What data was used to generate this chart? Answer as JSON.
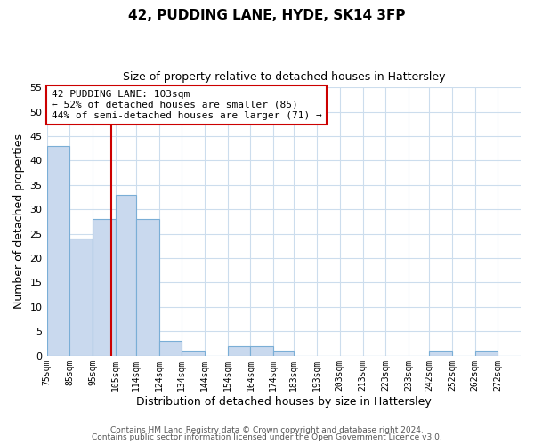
{
  "title": "42, PUDDING LANE, HYDE, SK14 3FP",
  "subtitle": "Size of property relative to detached houses in Hattersley",
  "xlabel": "Distribution of detached houses by size in Hattersley",
  "ylabel": "Number of detached properties",
  "bin_labels": [
    "75sqm",
    "85sqm",
    "95sqm",
    "105sqm",
    "114sqm",
    "124sqm",
    "134sqm",
    "144sqm",
    "154sqm",
    "164sqm",
    "174sqm",
    "183sqm",
    "193sqm",
    "203sqm",
    "213sqm",
    "223sqm",
    "233sqm",
    "242sqm",
    "252sqm",
    "262sqm",
    "272sqm"
  ],
  "bin_edges": [
    75,
    85,
    95,
    105,
    114,
    124,
    134,
    144,
    154,
    164,
    174,
    183,
    193,
    203,
    213,
    223,
    233,
    242,
    252,
    262,
    272
  ],
  "counts": [
    43,
    24,
    28,
    33,
    28,
    3,
    1,
    0,
    2,
    2,
    1,
    0,
    0,
    0,
    0,
    0,
    0,
    1,
    0,
    1,
    0
  ],
  "bar_color": "#c9d9ee",
  "bar_edge_color": "#7aaed6",
  "property_line_x": 103,
  "property_line_color": "#cc0000",
  "annotation_line1": "42 PUDDING LANE: 103sqm",
  "annotation_line2": "← 52% of detached houses are smaller (85)",
  "annotation_line3": "44% of semi-detached houses are larger (71) →",
  "annotation_box_color": "#ffffff",
  "annotation_box_edge": "#cc0000",
  "ylim": [
    0,
    55
  ],
  "yticks": [
    0,
    5,
    10,
    15,
    20,
    25,
    30,
    35,
    40,
    45,
    50,
    55
  ],
  "footer1": "Contains HM Land Registry data © Crown copyright and database right 2024.",
  "footer2": "Contains public sector information licensed under the Open Government Licence v3.0.",
  "bg_color": "#ffffff",
  "grid_color": "#ccdded"
}
